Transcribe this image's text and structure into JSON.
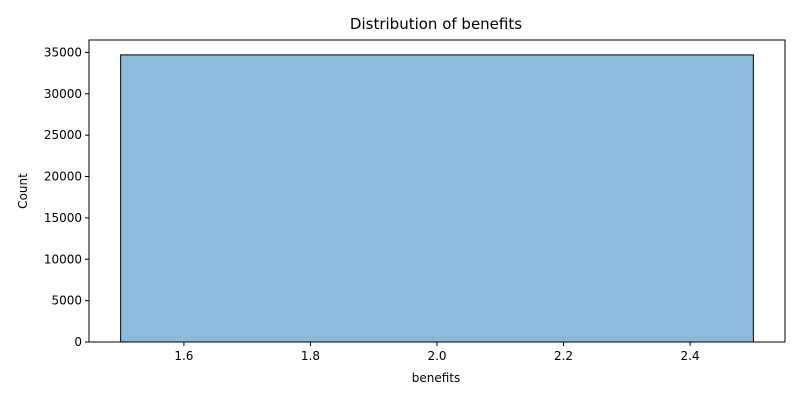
{
  "chart_data": {
    "type": "bar",
    "title": "Distribution of benefits",
    "xlabel": "benefits",
    "ylabel": "Count",
    "bins": [
      {
        "x0": 1.5,
        "x1": 2.5,
        "count": 34700
      }
    ],
    "xlim": [
      1.45,
      2.55
    ],
    "ylim": [
      0,
      36500
    ],
    "xticks": [
      1.6,
      1.8,
      2.0,
      2.2,
      2.4
    ],
    "xtick_labels": [
      "1.6",
      "1.8",
      "2.0",
      "2.2",
      "2.4"
    ],
    "yticks": [
      0,
      5000,
      10000,
      15000,
      20000,
      25000,
      30000,
      35000
    ],
    "ytick_labels": [
      "0",
      "5000",
      "10000",
      "15000",
      "20000",
      "25000",
      "30000",
      "35000"
    ],
    "grid": false,
    "colors": {
      "bar_fill": "#8db9db",
      "bar_edge": "#000000"
    }
  }
}
